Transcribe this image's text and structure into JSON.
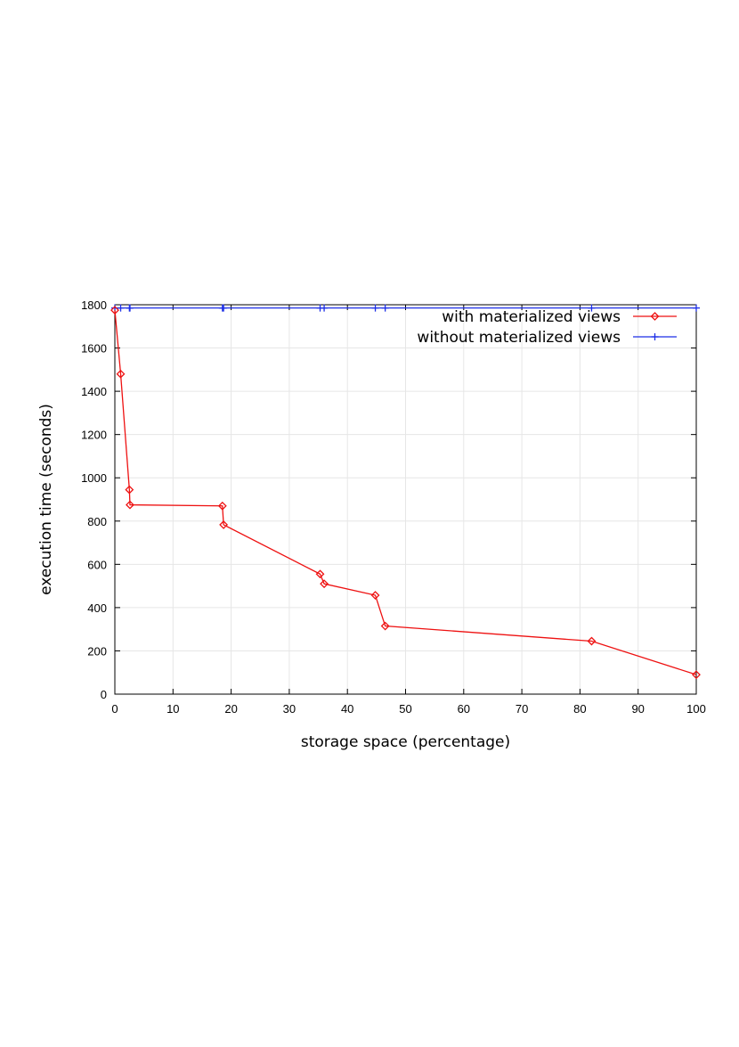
{
  "chart_data": {
    "type": "line",
    "title": "",
    "xlabel": "storage space (percentage)",
    "ylabel": "execution time (seconds)",
    "xlim": [
      0,
      100
    ],
    "ylim": [
      0,
      1800
    ],
    "xticks": [
      0,
      10,
      20,
      30,
      40,
      50,
      60,
      70,
      80,
      90,
      100
    ],
    "yticks": [
      0,
      200,
      400,
      600,
      800,
      1000,
      1200,
      1400,
      1600,
      1800
    ],
    "grid": true,
    "legend_position": "top-right",
    "series": [
      {
        "name": "with materialized views",
        "color": "#ee1111",
        "marker": "diamond",
        "x": [
          0,
          1,
          2.5,
          2.6,
          18.5,
          18.7,
          35.3,
          36.0,
          44.8,
          46.5,
          82,
          100
        ],
        "y": [
          1775,
          1480,
          945,
          875,
          870,
          783,
          555,
          510,
          457,
          315,
          245,
          90
        ]
      },
      {
        "name": "without materialized views",
        "color": "#1c2ee6",
        "marker": "plus",
        "x": [
          0,
          1,
          2.5,
          2.6,
          18.5,
          18.7,
          35.3,
          36.0,
          44.8,
          46.5,
          82,
          100
        ],
        "y": [
          1785,
          1785,
          1785,
          1785,
          1785,
          1785,
          1785,
          1785,
          1785,
          1785,
          1785,
          1785
        ]
      }
    ]
  }
}
